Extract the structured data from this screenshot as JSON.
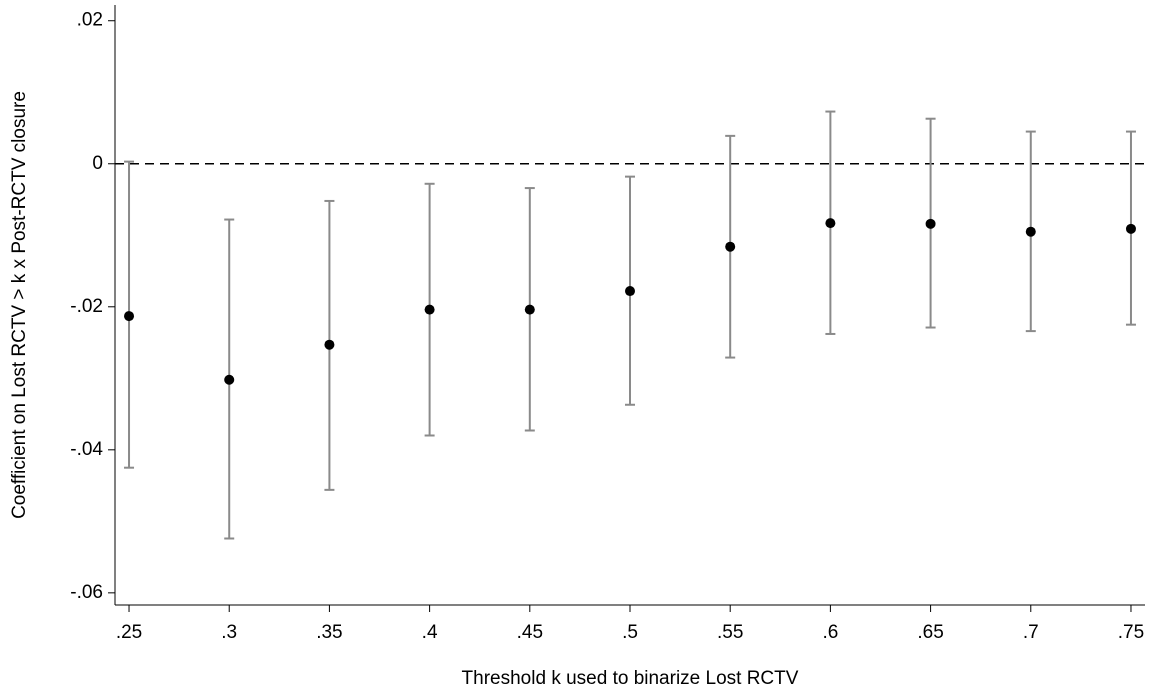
{
  "chart_data": {
    "type": "errorbar",
    "x_label": "Threshold k used to binarize Lost RCTV",
    "y_label": "Coefficient on Lost RCTV > k x Post-RCTV closure",
    "x": [
      0.25,
      0.3,
      0.35,
      0.4,
      0.45,
      0.5,
      0.55,
      0.6,
      0.65,
      0.7,
      0.75
    ],
    "values": [
      -0.0213,
      -0.0302,
      -0.0253,
      -0.0204,
      -0.0204,
      -0.0178,
      -0.0116,
      -0.0083,
      -0.0084,
      -0.0095,
      -0.0091
    ],
    "ci_lower": [
      -0.0425,
      -0.0524,
      -0.0456,
      -0.038,
      -0.0373,
      -0.0337,
      -0.0271,
      -0.0238,
      -0.0229,
      -0.0234,
      -0.0225
    ],
    "ci_upper": [
      0.0003,
      -0.0078,
      -0.0052,
      -0.0028,
      -0.0034,
      -0.0018,
      0.0039,
      0.0073,
      0.0063,
      0.0045,
      0.0045
    ],
    "color": "#000000",
    "ci_color": "#8a8a8a",
    "reference_line": {
      "y": 0,
      "color": "#000000",
      "style": "dashed"
    },
    "xlim": [
      0.243,
      0.757
    ],
    "ylim": [
      -0.0617,
      0.0222
    ],
    "xticks": [
      {
        "value": 0.25,
        "label": ".25"
      },
      {
        "value": 0.3,
        "label": ".3"
      },
      {
        "value": 0.35,
        "label": ".35"
      },
      {
        "value": 0.4,
        "label": ".4"
      },
      {
        "value": 0.45,
        "label": ".45"
      },
      {
        "value": 0.5,
        "label": ".5"
      },
      {
        "value": 0.55,
        "label": ".55"
      },
      {
        "value": 0.6,
        "label": ".6"
      },
      {
        "value": 0.65,
        "label": ".65"
      },
      {
        "value": 0.7,
        "label": ".7"
      },
      {
        "value": 0.75,
        "label": ".75"
      }
    ],
    "yticks": [
      {
        "value": 0.02,
        "label": ".02"
      },
      0,
      {
        "value": -0.02,
        "label": "-.02"
      },
      {
        "value": -0.04,
        "label": "-.04"
      },
      {
        "value": -0.06,
        "label": "-.06"
      }
    ],
    "grid": false
  }
}
